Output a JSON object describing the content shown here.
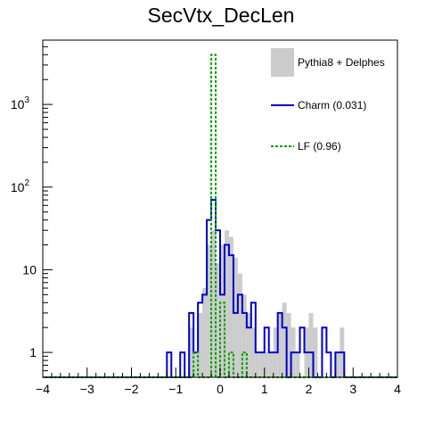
{
  "chart_data": {
    "type": "histogram",
    "title": "SecVtx_DecLen",
    "xlabel": "",
    "ylabel": "",
    "xlim": [
      -4,
      4
    ],
    "ylim": [
      0.5,
      6000
    ],
    "yscale": "log",
    "grid": false,
    "legend_position": "top-right",
    "bin_edges": [
      -4,
      -3.9,
      -3.8,
      -3.7,
      -3.6,
      -3.5,
      -3.4,
      -3.3,
      -3.2,
      -3.1,
      -3.0,
      -2.9,
      -2.8,
      -2.7,
      -2.6,
      -2.5,
      -2.4,
      -2.3,
      -2.2,
      -2.1,
      -2.0,
      -1.9,
      -1.8,
      -1.7,
      -1.6,
      -1.5,
      -1.4,
      -1.3,
      -1.2,
      -1.1,
      -1.0,
      -0.9,
      -0.8,
      -0.7,
      -0.6,
      -0.5,
      -0.4,
      -0.3,
      -0.2,
      -0.1,
      0.0,
      0.1,
      0.2,
      0.3,
      0.4,
      0.5,
      0.6,
      0.7,
      0.8,
      0.9,
      1.0,
      1.1,
      1.2,
      1.3,
      1.4,
      1.5,
      1.6,
      1.7,
      1.8,
      1.9,
      2.0,
      2.1,
      2.2,
      2.3,
      2.4,
      2.5,
      2.6,
      2.7,
      2.8,
      2.9,
      3.0,
      3.1,
      3.2,
      3.3,
      3.4,
      3.5,
      3.6,
      3.7,
      3.8,
      3.9,
      4.0
    ],
    "xticks": [
      "−4",
      "−3",
      "−2",
      "−1",
      "0",
      "1",
      "2",
      "3",
      "4"
    ],
    "yticks": [
      {
        "value": 1,
        "base": "1",
        "exp": ""
      },
      {
        "value": 10,
        "base": "10",
        "exp": ""
      },
      {
        "value": 100,
        "base": "10",
        "exp": "2"
      },
      {
        "value": 1000,
        "base": "10",
        "exp": "3"
      }
    ],
    "series": [
      {
        "name": "Pythia8 + Delphes",
        "style": "filled",
        "color": "#cccccc",
        "values": [
          0,
          0,
          0,
          0,
          0,
          0,
          0,
          0,
          0,
          0,
          0,
          0,
          0,
          0,
          0,
          0,
          0,
          0,
          0,
          0,
          0,
          0,
          0,
          0,
          0,
          0,
          0,
          0,
          0,
          0,
          0,
          0,
          0,
          2,
          1,
          3,
          6,
          20,
          30,
          12,
          20,
          30,
          25,
          14,
          9,
          5,
          3,
          2,
          1,
          1,
          1,
          1,
          2,
          3,
          4,
          3,
          2,
          1,
          0,
          2,
          3,
          2,
          0,
          0,
          0,
          0,
          1,
          2,
          0,
          0,
          0,
          0,
          0,
          0,
          0,
          0,
          0,
          0,
          0,
          0
        ]
      },
      {
        "name": "Charm (0.031)",
        "style": "line",
        "color": "#0000cc",
        "values": [
          0,
          0,
          0,
          0,
          0,
          0,
          0,
          0,
          0,
          0,
          0,
          0,
          0,
          0,
          0,
          0,
          0,
          0,
          0,
          0,
          0,
          0,
          0,
          0,
          0,
          0,
          0,
          0,
          1,
          0,
          0,
          1,
          0,
          3,
          1,
          4,
          5,
          40,
          70,
          30,
          5,
          20,
          15,
          3,
          5,
          3,
          2,
          4,
          1,
          1,
          2,
          1,
          1,
          3,
          2,
          0,
          1,
          1,
          2,
          1,
          1,
          0,
          0,
          2,
          1,
          0,
          1,
          1,
          0,
          0,
          0,
          0,
          0,
          0,
          0,
          0,
          0,
          0,
          0,
          0
        ]
      },
      {
        "name": "LF (0.96)",
        "style": "dashed",
        "color": "#00a000",
        "values": [
          0,
          0,
          0,
          0,
          0,
          0,
          0,
          0,
          0,
          0,
          0,
          0,
          0,
          0,
          0,
          0,
          0,
          0,
          0,
          0,
          0,
          0,
          0,
          0,
          0,
          0,
          0,
          0,
          0,
          0,
          0,
          0,
          0,
          0,
          1,
          0,
          0,
          0,
          4000,
          0,
          4,
          0,
          1,
          0,
          0,
          1,
          0,
          0,
          0,
          0,
          0,
          0,
          0,
          0,
          0,
          0,
          0,
          0,
          0,
          0,
          0,
          0,
          0,
          0,
          0,
          0,
          0,
          0,
          0,
          0,
          0,
          0,
          0,
          0,
          0,
          0,
          0,
          0,
          0,
          0
        ]
      }
    ]
  }
}
